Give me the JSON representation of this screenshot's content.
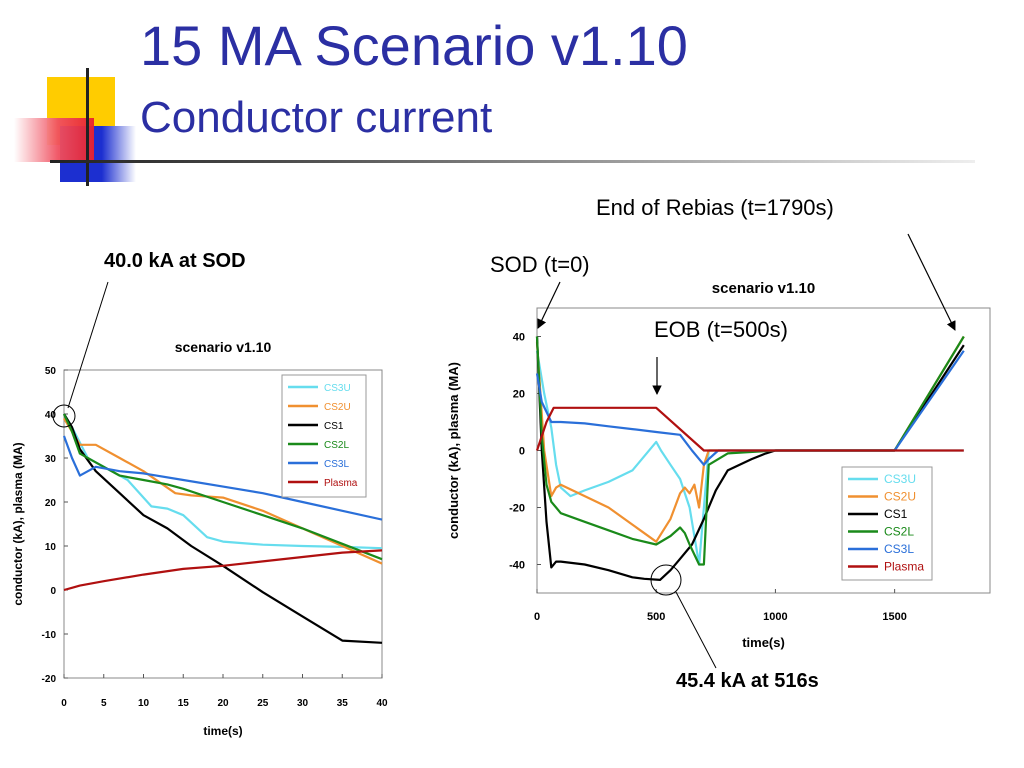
{
  "slide": {
    "title": "15 MA Scenario v1.10",
    "subtitle": "Conductor current"
  },
  "annotations": {
    "sod_peak": "40.0 kA at SOD",
    "rebias": "End of Rebias (t=1790s)",
    "sod": "SOD (t=0)",
    "eob": "EOB (t=500s)",
    "min_cs1": "45.4 kA at 516s"
  },
  "chart_data": [
    {
      "type": "line",
      "title": "scenario v1.10",
      "xlabel": "time(s)",
      "ylabel": "conductor (kA), plasma (MA)",
      "xlim": [
        0,
        40
      ],
      "ylim": [
        -20,
        50
      ],
      "xticks": [
        0,
        5,
        10,
        15,
        20,
        25,
        30,
        35,
        40
      ],
      "yticks": [
        -20,
        -10,
        0,
        10,
        20,
        30,
        40,
        50
      ],
      "grid": false,
      "legend": "top-right",
      "series": [
        {
          "name": "CS3U",
          "color": "#66ddee",
          "x": [
            0,
            1,
            3,
            5,
            8,
            11,
            13,
            15,
            18,
            20,
            25,
            30,
            35,
            40
          ],
          "y": [
            40,
            37,
            30,
            28,
            25,
            19,
            18.5,
            17,
            12,
            11,
            10.3,
            10,
            9.8,
            9.5
          ]
        },
        {
          "name": "CS2U",
          "color": "#f09030",
          "x": [
            0,
            1,
            2,
            4,
            7,
            10,
            14,
            16,
            20,
            25,
            30,
            35,
            40
          ],
          "y": [
            39,
            36,
            33,
            33,
            30,
            27,
            22,
            21.5,
            21,
            18,
            14,
            10,
            6
          ]
        },
        {
          "name": "CS1",
          "color": "#000000",
          "x": [
            0,
            1,
            2,
            4,
            7,
            10,
            13,
            16,
            20,
            25,
            30,
            35,
            40
          ],
          "y": [
            40,
            37,
            32,
            27,
            22,
            17,
            14,
            10,
            5.5,
            -0.5,
            -6,
            -11.5,
            -12
          ]
        },
        {
          "name": "CS2L",
          "color": "#1a8a1a",
          "x": [
            0,
            1,
            2,
            4,
            7,
            10,
            13,
            15,
            20,
            25,
            30,
            35,
            40
          ],
          "y": [
            40,
            36,
            31,
            29,
            26,
            25,
            24,
            23,
            20,
            17,
            14,
            10.5,
            7
          ]
        },
        {
          "name": "CS3L",
          "color": "#2a6fd9",
          "x": [
            0,
            1,
            2,
            4,
            7,
            10,
            15,
            20,
            25,
            30,
            35,
            40
          ],
          "y": [
            35,
            30,
            26,
            28,
            27,
            26.5,
            25,
            23.5,
            22,
            20,
            18,
            16
          ]
        },
        {
          "name": "Plasma",
          "color": "#b01010",
          "x": [
            0,
            1,
            2,
            5,
            10,
            15,
            20,
            25,
            30,
            35,
            40
          ],
          "y": [
            0,
            0.5,
            1,
            2,
            3.5,
            4.8,
            5.5,
            6.5,
            7.5,
            8.5,
            9
          ]
        }
      ]
    },
    {
      "type": "line",
      "title": "scenario v1.10",
      "xlabel": "time(s)",
      "ylabel": "conductor (kA), plasma (MA)",
      "xlim": [
        0,
        1900
      ],
      "ylim": [
        -50,
        50
      ],
      "xticks": [
        0,
        500,
        1000,
        1500
      ],
      "yticks": [
        -40,
        -20,
        0,
        20,
        40
      ],
      "grid": false,
      "legend": "bottom-right",
      "series": [
        {
          "name": "CS3U",
          "color": "#66ddee",
          "x": [
            0,
            30,
            60,
            80,
            100,
            140,
            200,
            300,
            400,
            500,
            520,
            560,
            600,
            640,
            680,
            720,
            740,
            780,
            900,
            1000,
            1500,
            1790
          ],
          "y": [
            35,
            20,
            8,
            -5,
            -13,
            -16,
            -14,
            -11,
            -7,
            3,
            0,
            -5,
            -10,
            -20,
            -40,
            0,
            0,
            0,
            0,
            0,
            0,
            0
          ]
        },
        {
          "name": "CS2U",
          "color": "#f09030",
          "x": [
            0,
            30,
            60,
            80,
            100,
            200,
            300,
            400,
            500,
            560,
            600,
            620,
            640,
            660,
            680,
            700,
            720,
            800,
            1000,
            1500,
            1790
          ],
          "y": [
            38,
            0,
            -16,
            -13,
            -12,
            -16,
            -20,
            -26,
            -32,
            -24,
            -15,
            -13,
            -15,
            -12,
            -20,
            -5,
            0,
            0,
            0,
            0,
            40
          ]
        },
        {
          "name": "CS1",
          "color": "#000000",
          "x": [
            0,
            20,
            40,
            60,
            80,
            100,
            200,
            300,
            400,
            450,
            516,
            560,
            600,
            650,
            700,
            750,
            800,
            900,
            960,
            1000,
            1500,
            1790
          ],
          "y": [
            40,
            0,
            -25,
            -41,
            -39,
            -39,
            -40,
            -42,
            -44.5,
            -45,
            -45.4,
            -42,
            -38,
            -33,
            -24,
            -14,
            -7,
            -3,
            -1,
            0,
            0,
            37
          ]
        },
        {
          "name": "CS2L",
          "color": "#1a8a1a",
          "x": [
            0,
            20,
            40,
            60,
            80,
            100,
            200,
            300,
            400,
            500,
            560,
            600,
            620,
            640,
            680,
            700,
            720,
            800,
            1000,
            1500,
            1790
          ],
          "y": [
            40,
            5,
            -12,
            -18,
            -20,
            -22,
            -25,
            -28,
            -31,
            -33,
            -30,
            -27,
            -29,
            -33,
            -40,
            -40,
            -5,
            -1,
            0,
            0,
            40
          ]
        },
        {
          "name": "CS3L",
          "color": "#2a6fd9",
          "x": [
            0,
            20,
            60,
            100,
            200,
            300,
            400,
            500,
            600,
            650,
            700,
            720,
            760,
            800,
            1000,
            1500,
            1790
          ],
          "y": [
            27,
            17,
            10,
            10,
            9.5,
            8.5,
            7.5,
            6.5,
            5.5,
            0,
            -5,
            -3,
            0,
            0,
            0,
            0,
            35
          ]
        },
        {
          "name": "Plasma",
          "color": "#b01010",
          "x": [
            0,
            40,
            70,
            100,
            200,
            300,
            400,
            500,
            700,
            720,
            1000,
            1500,
            1790
          ],
          "y": [
            0,
            10,
            15,
            15,
            15,
            15,
            15,
            15,
            0,
            0,
            0,
            0,
            0
          ]
        }
      ]
    }
  ]
}
